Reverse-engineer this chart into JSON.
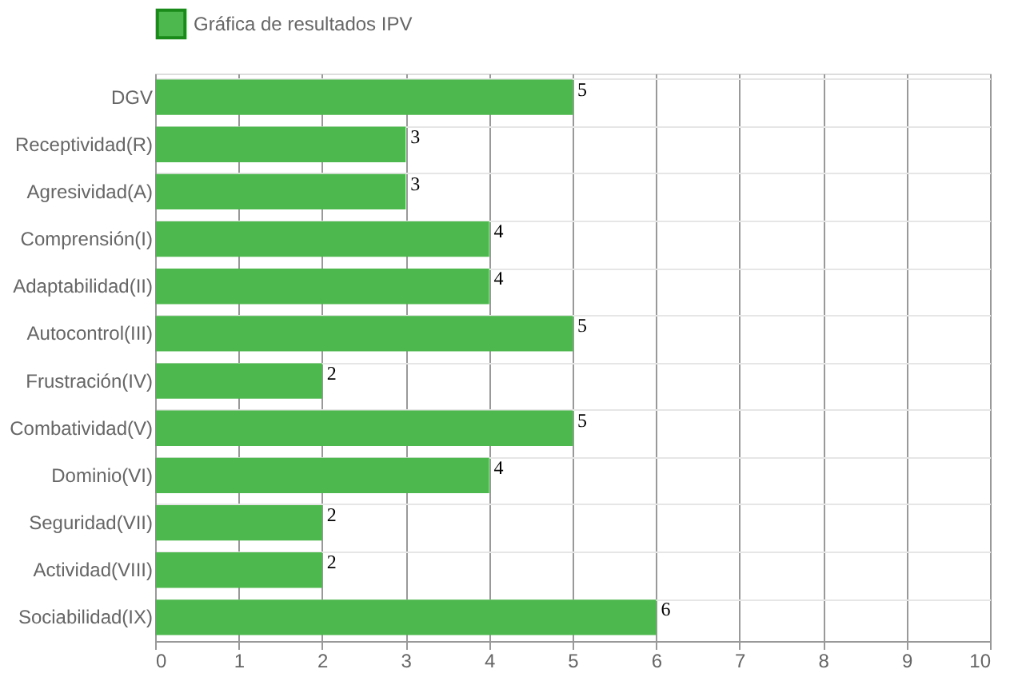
{
  "chart_data": {
    "type": "bar",
    "orientation": "horizontal",
    "categories": [
      "DGV",
      "Receptividad(R)",
      "Agresividad(A)",
      "Comprensión(I)",
      "Adaptabilidad(II)",
      "Autocontrol(III)",
      "Frustración(IV)",
      "Combatividad(V)",
      "Dominio(VI)",
      "Seguridad(VII)",
      "Actividad(VIII)",
      "Sociabilidad(IX)"
    ],
    "series": [
      {
        "name": "Gráfica de resultados IPV",
        "color": "#4db84d",
        "values": [
          5,
          3,
          3,
          4,
          4,
          5,
          2,
          5,
          4,
          2,
          2,
          6
        ]
      }
    ],
    "xlim": [
      0,
      10
    ],
    "xticks": [
      0,
      1,
      2,
      3,
      4,
      5,
      6,
      7,
      8,
      9,
      10
    ],
    "grid": true,
    "legend": "top",
    "data_labels": true
  }
}
